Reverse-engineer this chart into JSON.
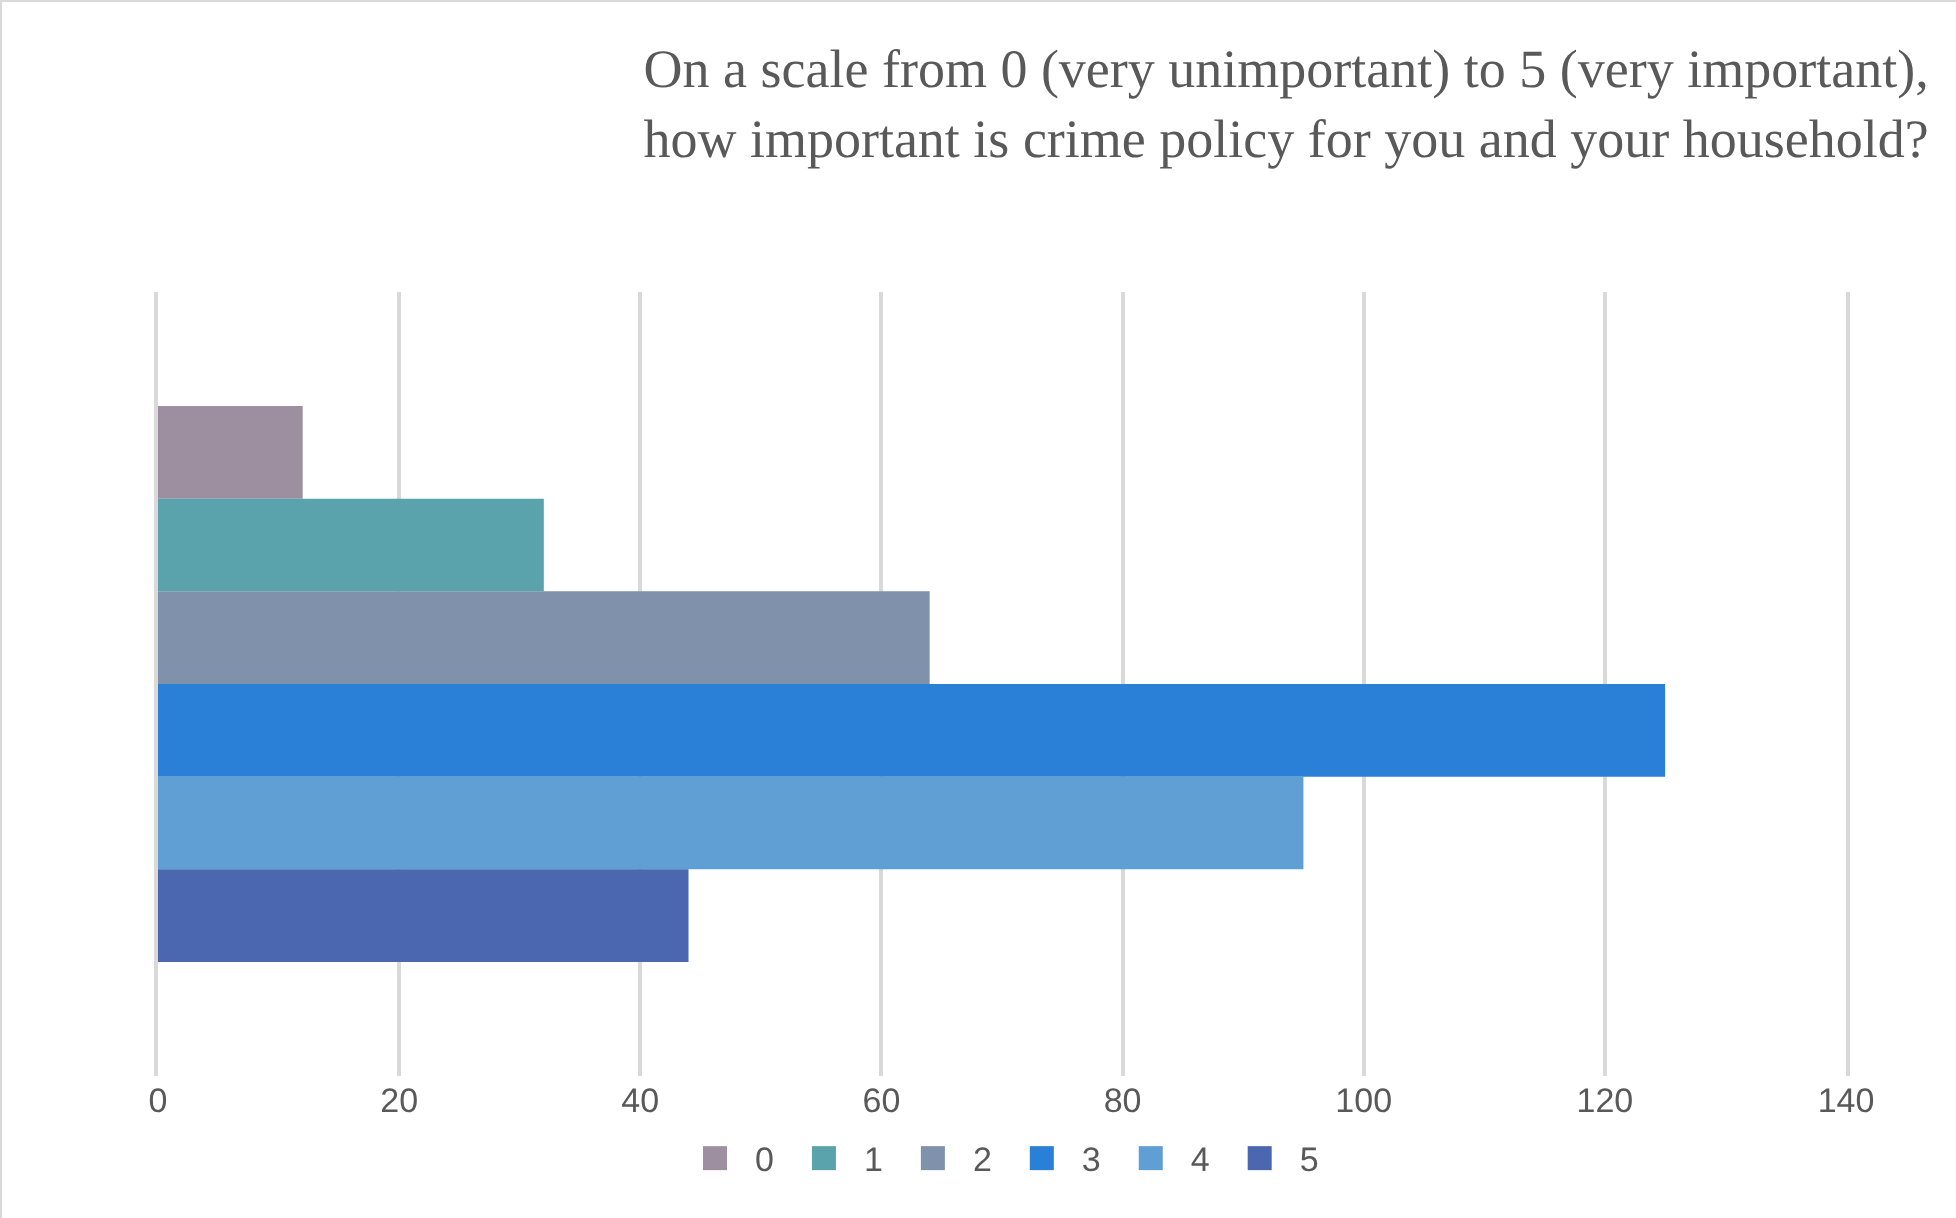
{
  "chart_data": {
    "type": "bar",
    "orientation": "horizontal",
    "title": "On a scale from 0 (very unimportant) to 5 (very important),\nhow important is crime policy for you and your household?",
    "categories": [
      null
    ],
    "series": [
      {
        "name": "0",
        "color": "#9e8fa0",
        "values": [
          12
        ]
      },
      {
        "name": "1",
        "color": "#5aa3ad",
        "values": [
          32
        ]
      },
      {
        "name": "2",
        "color": "#7f91ab",
        "values": [
          64
        ]
      },
      {
        "name": "3",
        "color": "#2a7fd6",
        "values": [
          125
        ]
      },
      {
        "name": "4",
        "color": "#5f9fd4",
        "values": [
          95
        ]
      },
      {
        "name": "5",
        "color": "#4a67b0",
        "values": [
          44
        ]
      }
    ],
    "xlim": [
      0,
      140
    ],
    "xticks": [
      0,
      20,
      40,
      60,
      80,
      100,
      120,
      140
    ],
    "grid": "x",
    "legend": "bottom"
  }
}
